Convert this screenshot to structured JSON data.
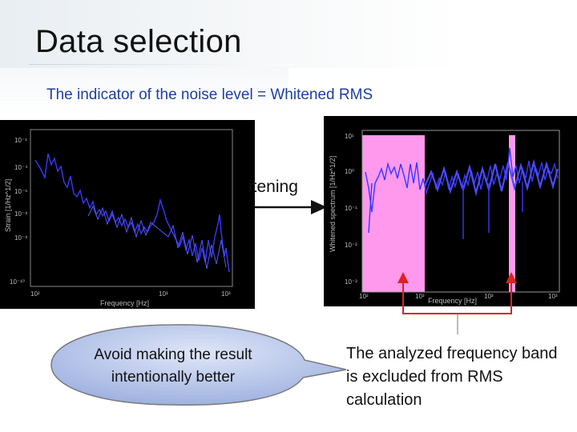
{
  "slide": {
    "title": "Data selection",
    "subtitle": "The indicator of the noise level = Whitened RMS",
    "arrow_label": "itening",
    "callout_text": "Avoid making the result intentionally better",
    "note_text": "The analyzed frequency band is excluded from RMS calculation"
  },
  "left_plot": {
    "ylabel": "Strain [1/Hz^1/2]",
    "xlabel": "Frequency [Hz]",
    "yticks": [
      "10⁻¹",
      "10⁻⁴",
      "10⁻⁶",
      "10⁻⁸",
      "10⁻⁸",
      "10⁻¹⁰"
    ],
    "xticks": [
      "10²",
      "10³",
      "10³"
    ]
  },
  "right_plot": {
    "ylabel": "Whitened spectrum [1/Hz^1/2]",
    "xlabel": "Frequency [Hz]",
    "yticks": [
      "10¹",
      "10⁰",
      "10⁻¹",
      "10⁻²",
      "10⁻³"
    ],
    "xticks": [
      "10²",
      "10³",
      "10³",
      "10³"
    ]
  },
  "colors": {
    "title_text": "#111111",
    "subtitle_text": "#1f3fa0",
    "trace": "#3333ff",
    "plot_bg": "#000000",
    "excluded_band": "#ff99ee",
    "bracket": "#dd2222",
    "callout_fill": "#b8c6ea"
  }
}
